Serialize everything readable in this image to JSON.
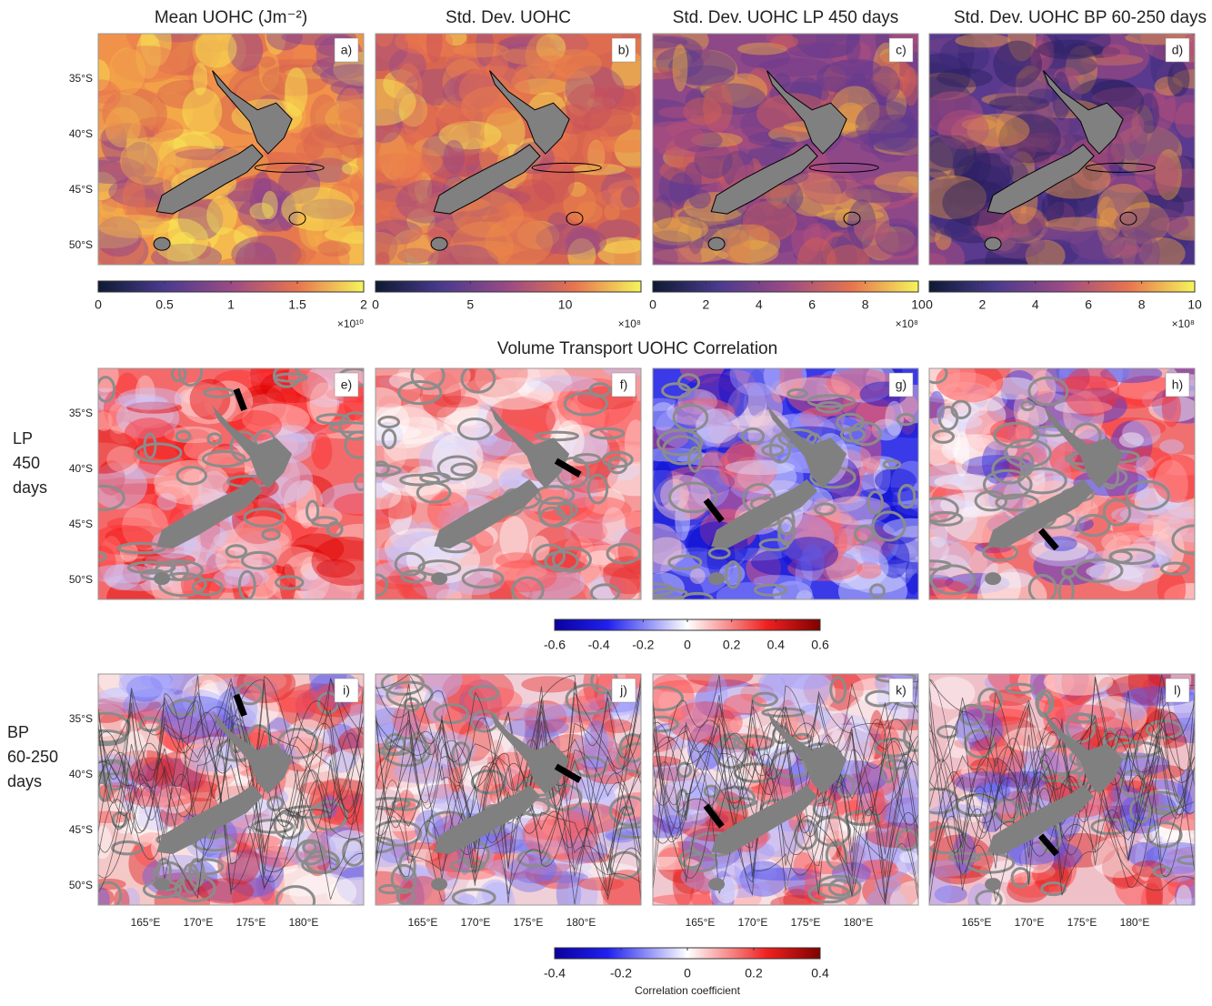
{
  "top_row": {
    "panels": [
      {
        "title": "Mean UOHC (Jm⁻²)",
        "letter": "a)",
        "colorbar": {
          "range": [
            0,
            2
          ],
          "ticks": [
            0,
            0.5,
            1,
            1.5,
            2
          ],
          "multiplier": "×10¹⁰"
        }
      },
      {
        "title": "Std. Dev. UOHC",
        "letter": "b)",
        "colorbar": {
          "range": [
            0,
            14
          ],
          "ticks": [
            0,
            5,
            10
          ],
          "multiplier": "×10⁸"
        }
      },
      {
        "title": "Std. Dev. UOHC LP 450 days",
        "letter": "c)",
        "colorbar": {
          "range": [
            0,
            10
          ],
          "ticks": [
            0,
            2,
            4,
            6,
            8,
            10
          ],
          "multiplier": "×10⁸"
        }
      },
      {
        "title": "Std. Dev. UOHC BP 60-250 days",
        "letter": "d)",
        "colorbar": {
          "range": [
            0,
            10
          ],
          "ticks": [
            0,
            2,
            4,
            6,
            8,
            10
          ],
          "multiplier": "×10⁸"
        }
      }
    ]
  },
  "section_title": "Volume Transport UOHC Correlation",
  "rows": [
    {
      "label": [
        "LP",
        "450",
        "days"
      ],
      "letters": [
        "e)",
        "f)",
        "g)",
        "h)"
      ],
      "colorbar": {
        "range": [
          -0.6,
          0.6
        ],
        "ticks": [
          -0.6,
          -0.4,
          -0.2,
          0,
          0.2,
          0.4,
          0.6
        ]
      }
    },
    {
      "label": [
        "BP",
        "60-250",
        "days"
      ],
      "letters": [
        "i)",
        "j)",
        "k)",
        "l)"
      ],
      "colorbar": {
        "range": [
          -0.4,
          0.4
        ],
        "ticks": [
          -0.4,
          -0.2,
          0,
          0.2,
          0.4
        ],
        "label": "Correlation coefficient"
      }
    }
  ],
  "lat_labels": [
    "35°S",
    "40°S",
    "45°S",
    "50°S"
  ],
  "lon_labels": [
    "165°E",
    "170°E",
    "175°E",
    "180°E"
  ]
}
